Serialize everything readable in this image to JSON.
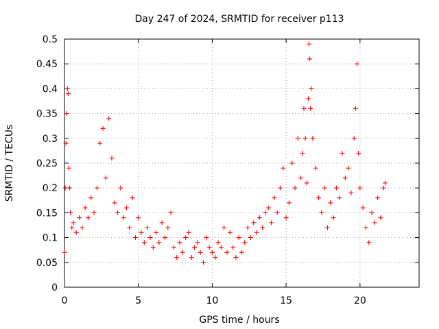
{
  "chart_data": {
    "type": "scatter",
    "title": "Day 247 of 2024, SRMTID for receiver p113",
    "xlabel": "GPS time / hours",
    "ylabel": "SRMTID / TECUs",
    "xlim": [
      0,
      24
    ],
    "ylim": [
      0,
      0.5
    ],
    "x_ticks": [
      0,
      5,
      10,
      15,
      20
    ],
    "x_tick_labels": [
      "0",
      "5",
      "10",
      "15",
      "20"
    ],
    "y_ticks": [
      0,
      0.05,
      0.1,
      0.15,
      0.2,
      0.25,
      0.3,
      0.35,
      0.4,
      0.45,
      0.5
    ],
    "y_tick_labels": [
      "0",
      "0.05",
      "0.1",
      "0.15",
      "0.2",
      "0.25",
      "0.3",
      "0.35",
      "0.4",
      "0.45",
      "0.5"
    ],
    "grid": true,
    "marker": "plus",
    "color": "#ff0000",
    "series": [
      {
        "name": "SRMTID",
        "x": [
          0.0,
          0.05,
          0.1,
          0.15,
          0.2,
          0.25,
          0.3,
          0.35,
          0.4,
          0.5,
          0.6,
          0.8,
          1.0,
          1.2,
          1.4,
          1.6,
          1.8,
          2.0,
          2.2,
          2.4,
          2.6,
          2.8,
          3.0,
          3.2,
          3.4,
          3.6,
          3.8,
          4.0,
          4.2,
          4.4,
          4.6,
          4.8,
          5.0,
          5.2,
          5.4,
          5.6,
          5.8,
          6.0,
          6.2,
          6.4,
          6.6,
          6.8,
          7.0,
          7.2,
          7.4,
          7.6,
          7.8,
          8.0,
          8.2,
          8.4,
          8.6,
          8.8,
          9.0,
          9.2,
          9.4,
          9.6,
          9.8,
          10.0,
          10.2,
          10.4,
          10.6,
          10.8,
          11.0,
          11.2,
          11.4,
          11.6,
          11.8,
          12.0,
          12.2,
          12.4,
          12.6,
          12.8,
          13.0,
          13.2,
          13.4,
          13.6,
          13.8,
          14.0,
          14.2,
          14.4,
          14.6,
          14.8,
          15.0,
          15.2,
          15.4,
          15.6,
          15.8,
          16.0,
          16.1,
          16.2,
          16.3,
          16.4,
          16.5,
          16.55,
          16.6,
          16.65,
          16.7,
          16.8,
          17.0,
          17.2,
          17.4,
          17.6,
          17.8,
          18.0,
          18.2,
          18.4,
          18.6,
          18.8,
          19.0,
          19.2,
          19.4,
          19.6,
          19.7,
          19.8,
          19.9,
          20.0,
          20.2,
          20.4,
          20.6,
          20.8,
          21.0,
          21.2,
          21.4,
          21.6,
          21.7
        ],
        "y": [
          0.07,
          0.2,
          0.29,
          0.35,
          0.4,
          0.39,
          0.24,
          0.2,
          0.15,
          0.12,
          0.13,
          0.11,
          0.14,
          0.12,
          0.16,
          0.14,
          0.18,
          0.15,
          0.2,
          0.29,
          0.32,
          0.22,
          0.34,
          0.26,
          0.17,
          0.15,
          0.2,
          0.14,
          0.16,
          0.12,
          0.18,
          0.1,
          0.14,
          0.11,
          0.09,
          0.12,
          0.1,
          0.08,
          0.11,
          0.09,
          0.13,
          0.1,
          0.12,
          0.15,
          0.08,
          0.06,
          0.09,
          0.07,
          0.1,
          0.11,
          0.06,
          0.08,
          0.09,
          0.07,
          0.05,
          0.1,
          0.08,
          0.07,
          0.06,
          0.09,
          0.08,
          0.12,
          0.07,
          0.11,
          0.08,
          0.06,
          0.1,
          0.07,
          0.09,
          0.12,
          0.1,
          0.13,
          0.11,
          0.14,
          0.12,
          0.15,
          0.16,
          0.13,
          0.18,
          0.15,
          0.2,
          0.24,
          0.14,
          0.17,
          0.25,
          0.2,
          0.3,
          0.22,
          0.27,
          0.36,
          0.3,
          0.21,
          0.38,
          0.49,
          0.46,
          0.36,
          0.4,
          0.3,
          0.24,
          0.18,
          0.15,
          0.2,
          0.12,
          0.17,
          0.14,
          0.2,
          0.18,
          0.27,
          0.22,
          0.24,
          0.19,
          0.3,
          0.36,
          0.45,
          0.27,
          0.2,
          0.16,
          0.12,
          0.09,
          0.15,
          0.13,
          0.18,
          0.14,
          0.2,
          0.21
        ]
      }
    ]
  }
}
